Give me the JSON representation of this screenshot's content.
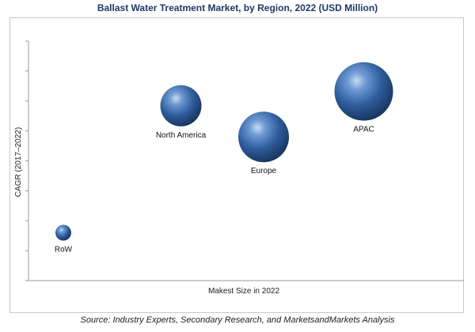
{
  "title": "Ballast Water Treatment Market, by Region, 2022 (USD Million)",
  "source": "Source: Industry Experts, Secondary Research, and MarketsandMarkets Analysis",
  "chart_data": {
    "type": "scatter",
    "subtype": "bubble",
    "title": "Ballast Water Treatment Market, by Region, 2022 (USD Million)",
    "xlabel": "Makest Size in 2022",
    "ylabel": "CAGR (2017–2022)",
    "xlim": [
      0,
      100
    ],
    "ylim": [
      0,
      100
    ],
    "grid": false,
    "axis_ticks_labeled": false,
    "bubble_color": "#2e5d9c",
    "points": [
      {
        "label": "RoW",
        "x": 8,
        "y": 20,
        "size": 10
      },
      {
        "label": "North America",
        "x": 35,
        "y": 73,
        "size": 26
      },
      {
        "label": "Europe",
        "x": 54,
        "y": 60,
        "size": 32
      },
      {
        "label": "APAC",
        "x": 77,
        "y": 79,
        "size": 37
      }
    ]
  }
}
